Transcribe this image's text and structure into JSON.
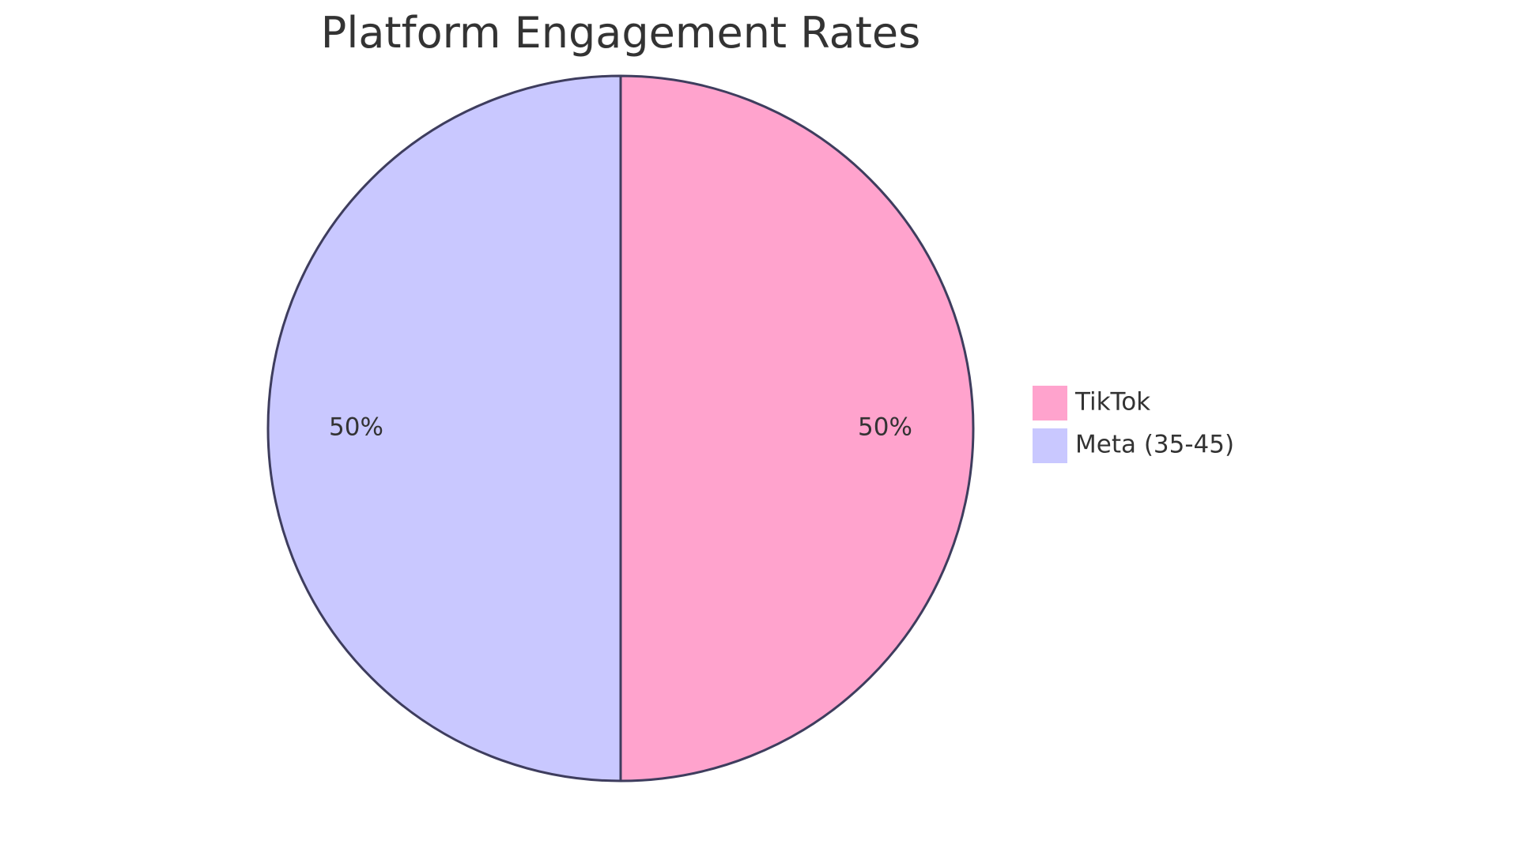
{
  "chart_data": {
    "type": "pie",
    "title": "Platform Engagement Rates",
    "series": [
      {
        "name": "TikTok",
        "value": 50,
        "label": "50%",
        "color": "#FFA3CD"
      },
      {
        "name": "Meta (35-45)",
        "value": 50,
        "label": "50%",
        "color": "#C9C8FF"
      }
    ],
    "legend_position": "right",
    "stroke_color": "#3E3D5E"
  }
}
